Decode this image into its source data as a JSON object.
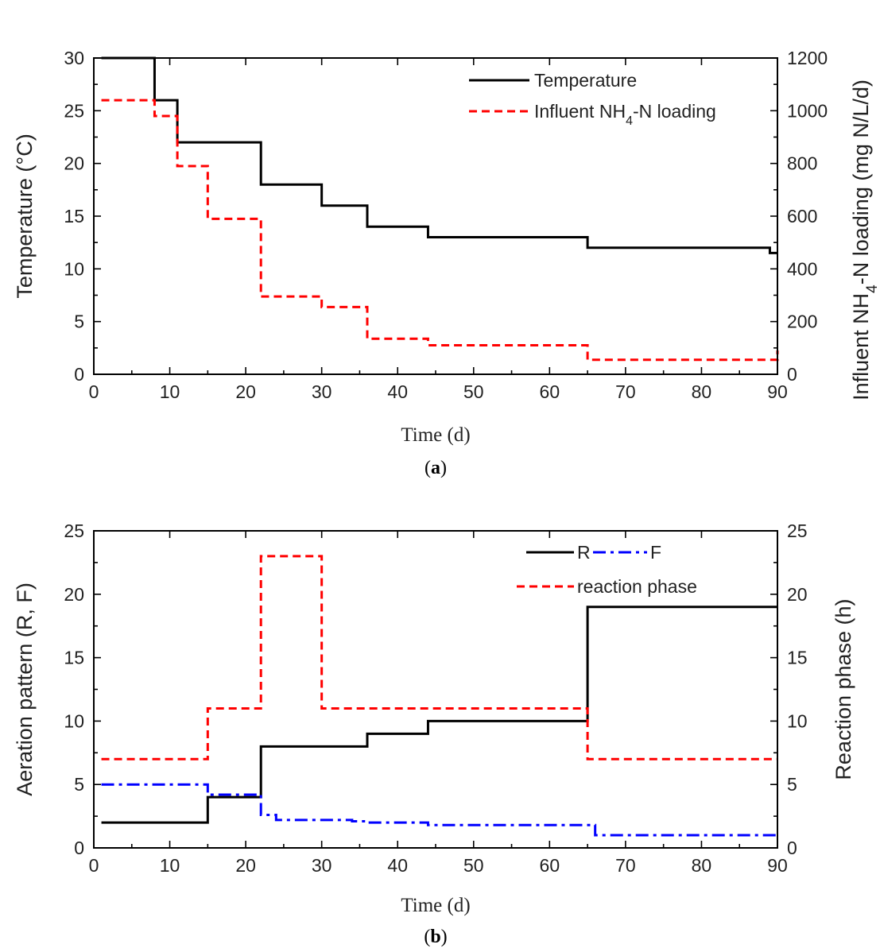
{
  "figure": {
    "panels": [
      {
        "label_open": "(",
        "label_letter": "a",
        "label_close": ")",
        "legend_position": "top-right"
      },
      {
        "label_open": "(",
        "label_letter": "b",
        "label_close": ")",
        "legend_position": "top-right"
      }
    ]
  },
  "chart_data": [
    {
      "type": "line",
      "step": true,
      "xlabel": "Time (d)",
      "ylabel": "Temperature (°C)",
      "y2label": "Influent NH4-N loading (mg N/L/d)",
      "y2label_parts": [
        "Influent NH",
        "4",
        "-N loading (mg N/L/d)"
      ],
      "xlim": [
        0,
        90
      ],
      "ylim": [
        0,
        30
      ],
      "y2lim": [
        0,
        1200
      ],
      "xticks": [
        0,
        10,
        20,
        30,
        40,
        50,
        60,
        70,
        80,
        90
      ],
      "yticks": [
        0,
        5,
        10,
        15,
        20,
        25,
        30
      ],
      "y2ticks": [
        0,
        200,
        400,
        600,
        800,
        1000,
        1200
      ],
      "grid": false,
      "series": [
        {
          "name": "Temperature",
          "legend_parts": [
            "Temperature"
          ],
          "axis": "left",
          "color": "#000000",
          "style": "solid",
          "x": [
            1,
            8,
            11,
            22,
            30,
            36,
            44,
            65,
            89,
            90
          ],
          "y": [
            30,
            26,
            22,
            18,
            16,
            14,
            13,
            12,
            11.5,
            11.5
          ]
        },
        {
          "name": "Influent NH4-N loading",
          "legend_parts": [
            "Influent NH",
            "4",
            "-N loading"
          ],
          "axis": "right",
          "color": "#ff0000",
          "style": "dash",
          "x": [
            1,
            8,
            11,
            15,
            22,
            30,
            36,
            44,
            65,
            89,
            90
          ],
          "y": [
            1040,
            980,
            790,
            590,
            295,
            255,
            135,
            110,
            55,
            55,
            90
          ]
        }
      ]
    },
    {
      "type": "line",
      "step": true,
      "xlabel": "Time (d)",
      "ylabel": "Aeration pattern (R, F)",
      "y2label": "Reaction phase (h)",
      "xlim": [
        0,
        90
      ],
      "ylim": [
        0,
        25
      ],
      "y2lim": [
        0,
        25
      ],
      "xticks": [
        0,
        10,
        20,
        30,
        40,
        50,
        60,
        70,
        80,
        90
      ],
      "yticks": [
        0,
        5,
        10,
        15,
        20,
        25
      ],
      "y2ticks": [
        0,
        5,
        10,
        15,
        20,
        25
      ],
      "grid": false,
      "series": [
        {
          "name": "R",
          "axis": "left",
          "color": "#000000",
          "style": "solid",
          "x": [
            1,
            15,
            22,
            36,
            44,
            65,
            90
          ],
          "y": [
            2,
            4,
            8,
            9,
            10,
            19,
            19
          ]
        },
        {
          "name": "F",
          "axis": "left",
          "color": "#0000ff",
          "style": "dashdot",
          "x": [
            1,
            14,
            15,
            22,
            24,
            34,
            36,
            44,
            64,
            66,
            90
          ],
          "y": [
            5,
            5,
            4.2,
            2.6,
            2.2,
            2.1,
            2.0,
            1.8,
            1.8,
            1.0,
            1.0
          ]
        },
        {
          "name": "reaction phase",
          "axis": "right",
          "color": "#ff0000",
          "style": "dash",
          "x": [
            1,
            15,
            22,
            30,
            65,
            90
          ],
          "y": [
            7,
            11,
            23,
            11,
            7,
            7
          ]
        }
      ]
    }
  ]
}
